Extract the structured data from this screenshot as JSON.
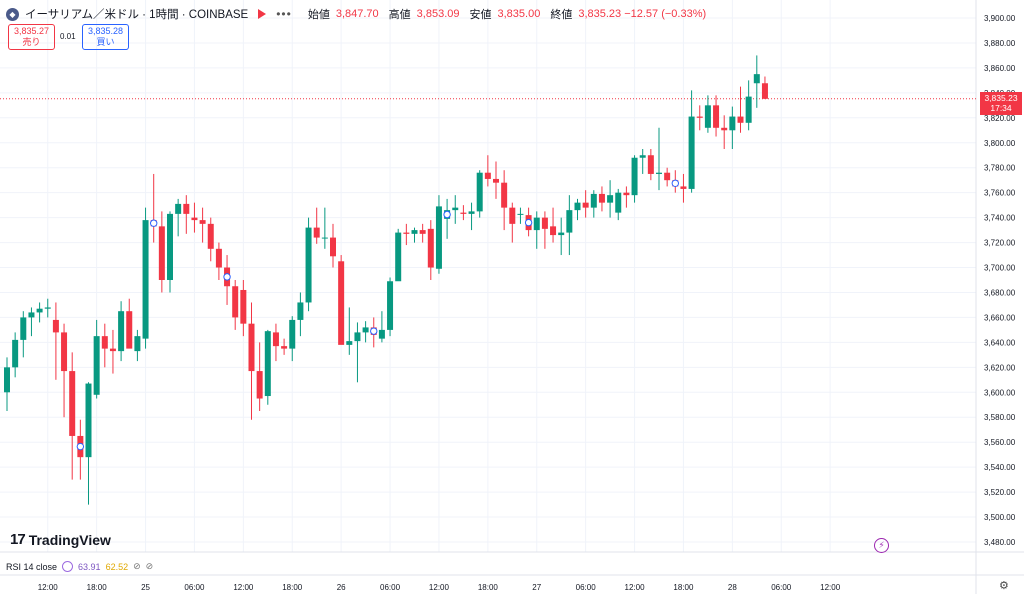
{
  "header": {
    "symbol_icon": "ethereum-icon",
    "symbol_title": "イーサリアム／米ドル · 1時間 · COINBASE",
    "more": "•••",
    "ohlc": [
      {
        "label": "始値",
        "value": "3,847.70"
      },
      {
        "label": "高値",
        "value": "3,853.09"
      },
      {
        "label": "安値",
        "value": "3,835.00"
      },
      {
        "label": "終値",
        "value": "3,835.23 −12.57 (−0.33%)"
      }
    ]
  },
  "quote": {
    "sell_price": "3,835.27",
    "sell_label": "売り",
    "spread": "0.01",
    "buy_price": "3,835.28",
    "buy_label": "買い"
  },
  "logo": {
    "text": "TradingView",
    "mark": "17"
  },
  "indicator": {
    "name": "RSI 14 close",
    "value1": "63.91",
    "value2": "62.52"
  },
  "price_tag": {
    "price": "3,835.23",
    "countdown": "17:34"
  },
  "colors": {
    "up": "#089981",
    "down": "#f23645",
    "grid": "#f0f3fa",
    "text": "#131722"
  },
  "chart_data": {
    "type": "candlestick",
    "y_ticks": [
      "3,480.00",
      "3,500.00",
      "3,520.00",
      "3,540.00",
      "3,560.00",
      "3,580.00",
      "3,600.00",
      "3,620.00",
      "3,640.00",
      "3,660.00",
      "3,680.00",
      "3,700.00",
      "3,720.00",
      "3,740.00",
      "3,760.00",
      "3,780.00",
      "3,800.00",
      "3,820.00",
      "3,840.00",
      "3,860.00",
      "3,880.00",
      "3,900.00"
    ],
    "ylim": [
      3475,
      3905
    ],
    "x_ticks": [
      {
        "label": "12:00",
        "index": 5
      },
      {
        "label": "18:00",
        "index": 11
      },
      {
        "label": "25",
        "index": 17
      },
      {
        "label": "06:00",
        "index": 23
      },
      {
        "label": "12:00",
        "index": 29
      },
      {
        "label": "18:00",
        "index": 35
      },
      {
        "label": "26",
        "index": 41
      },
      {
        "label": "06:00",
        "index": 47
      },
      {
        "label": "12:00",
        "index": 53
      },
      {
        "label": "18:00",
        "index": 59
      },
      {
        "label": "27",
        "index": 65
      },
      {
        "label": "06:00",
        "index": 71
      },
      {
        "label": "12:00",
        "index": 77
      },
      {
        "label": "18:00",
        "index": 83
      },
      {
        "label": "28",
        "index": 89
      },
      {
        "label": "06:00",
        "index": 95
      },
      {
        "label": "12:00",
        "index": 101
      }
    ],
    "last_price": 3835.23,
    "candles": [
      [
        3600,
        3628,
        3585,
        3620
      ],
      [
        3620,
        3648,
        3612,
        3642
      ],
      [
        3642,
        3665,
        3628,
        3660
      ],
      [
        3660,
        3668,
        3645,
        3664
      ],
      [
        3664,
        3672,
        3656,
        3667
      ],
      [
        3667,
        3675,
        3660,
        3668
      ],
      [
        3658,
        3672,
        3610,
        3648
      ],
      [
        3648,
        3655,
        3580,
        3617
      ],
      [
        3617,
        3632,
        3530,
        3565
      ],
      [
        3565,
        3578,
        3530,
        3548
      ],
      [
        3548,
        3608,
        3510,
        3607
      ],
      [
        3598,
        3658,
        3595,
        3645
      ],
      [
        3645,
        3655,
        3620,
        3635
      ],
      [
        3635,
        3650,
        3615,
        3633
      ],
      [
        3633,
        3673,
        3625,
        3665
      ],
      [
        3665,
        3675,
        3638,
        3635
      ],
      [
        3633,
        3650,
        3625,
        3645
      ],
      [
        3643,
        3748,
        3635,
        3738
      ],
      [
        3738,
        3775,
        3720,
        3733
      ],
      [
        3733,
        3745,
        3680,
        3690
      ],
      [
        3690,
        3745,
        3680,
        3743
      ],
      [
        3743,
        3755,
        3725,
        3751
      ],
      [
        3751,
        3758,
        3727,
        3743
      ],
      [
        3740,
        3752,
        3728,
        3738
      ],
      [
        3738,
        3748,
        3720,
        3735
      ],
      [
        3735,
        3740,
        3705,
        3715
      ],
      [
        3715,
        3720,
        3690,
        3700
      ],
      [
        3700,
        3710,
        3670,
        3685
      ],
      [
        3685,
        3690,
        3650,
        3660
      ],
      [
        3682,
        3690,
        3645,
        3655
      ],
      [
        3655,
        3672,
        3578,
        3617
      ],
      [
        3617,
        3640,
        3585,
        3595
      ],
      [
        3597,
        3650,
        3590,
        3649
      ],
      [
        3648,
        3655,
        3625,
        3637
      ],
      [
        3637,
        3643,
        3630,
        3635
      ],
      [
        3635,
        3661,
        3625,
        3658
      ],
      [
        3658,
        3680,
        3645,
        3672
      ],
      [
        3672,
        3740,
        3665,
        3732
      ],
      [
        3732,
        3748,
        3719,
        3724
      ],
      [
        3724,
        3748,
        3715,
        3724
      ],
      [
        3724,
        3735,
        3700,
        3709
      ],
      [
        3705,
        3710,
        3640,
        3638
      ],
      [
        3638,
        3668,
        3630,
        3641
      ],
      [
        3641,
        3656,
        3608,
        3648
      ],
      [
        3648,
        3657,
        3640,
        3652
      ],
      [
        3652,
        3660,
        3636,
        3646
      ],
      [
        3643,
        3665,
        3640,
        3650
      ],
      [
        3650,
        3692,
        3645,
        3689
      ],
      [
        3689,
        3731,
        3690,
        3728
      ],
      [
        3728,
        3735,
        3718,
        3727
      ],
      [
        3727,
        3732,
        3720,
        3730
      ],
      [
        3730,
        3735,
        3720,
        3727
      ],
      [
        3731,
        3738,
        3690,
        3700
      ],
      [
        3699,
        3758,
        3695,
        3749
      ],
      [
        3739,
        3755,
        3723,
        3746
      ],
      [
        3746,
        3758,
        3735,
        3748
      ],
      [
        3744,
        3750,
        3738,
        3743
      ],
      [
        3743,
        3752,
        3730,
        3745
      ],
      [
        3745,
        3778,
        3740,
        3776
      ],
      [
        3776,
        3790,
        3765,
        3771
      ],
      [
        3771,
        3785,
        3755,
        3768
      ],
      [
        3768,
        3778,
        3730,
        3748
      ],
      [
        3748,
        3752,
        3720,
        3735
      ],
      [
        3743,
        3748,
        3735,
        3743
      ],
      [
        3742,
        3748,
        3725,
        3730
      ],
      [
        3730,
        3745,
        3715,
        3740
      ],
      [
        3740,
        3745,
        3715,
        3731
      ],
      [
        3733,
        3748,
        3720,
        3726
      ],
      [
        3726,
        3740,
        3710,
        3728
      ],
      [
        3728,
        3758,
        3710,
        3746
      ],
      [
        3746,
        3755,
        3738,
        3752
      ],
      [
        3752,
        3762,
        3740,
        3748
      ],
      [
        3748,
        3762,
        3740,
        3759
      ],
      [
        3759,
        3765,
        3745,
        3752
      ],
      [
        3752,
        3770,
        3740,
        3758
      ],
      [
        3744,
        3763,
        3738,
        3760
      ],
      [
        3760,
        3765,
        3748,
        3758
      ],
      [
        3758,
        3790,
        3752,
        3788
      ],
      [
        3788,
        3795,
        3775,
        3790
      ],
      [
        3790,
        3795,
        3770,
        3775
      ],
      [
        3775,
        3812,
        3762,
        3776
      ],
      [
        3776,
        3780,
        3765,
        3770
      ],
      [
        3770,
        3778,
        3760,
        3765
      ],
      [
        3765,
        3775,
        3752,
        3763
      ],
      [
        3763,
        3842,
        3760,
        3821
      ],
      [
        3821,
        3830,
        3810,
        3820
      ],
      [
        3812,
        3838,
        3808,
        3830
      ],
      [
        3830,
        3838,
        3805,
        3812
      ],
      [
        3812,
        3822,
        3795,
        3810
      ],
      [
        3810,
        3829,
        3795,
        3821
      ],
      [
        3821,
        3845,
        3808,
        3816
      ],
      [
        3816,
        3850,
        3810,
        3837
      ],
      [
        3847.7,
        3870,
        3828,
        3855
      ],
      [
        3847.7,
        3853.09,
        3835.0,
        3835.23
      ]
    ]
  }
}
